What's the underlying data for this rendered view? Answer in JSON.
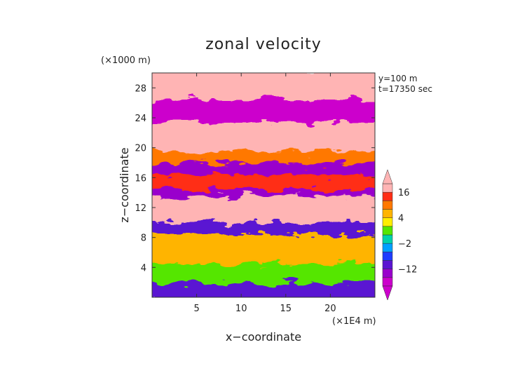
{
  "chart_data": {
    "type": "heatmap",
    "title": "zonal velocity",
    "xlabel": "x−coordinate",
    "ylabel": "z−coordinate",
    "x_unit_label": "(×1E4 m)",
    "y_unit_label": "(×1000 m)",
    "annotations": [
      "y=100 m",
      "t=17350 sec"
    ],
    "xlim": [
      0,
      25
    ],
    "ylim": [
      0,
      30
    ],
    "xticks": [
      5,
      10,
      15,
      20
    ],
    "yticks": [
      4,
      8,
      12,
      16,
      20,
      24,
      28
    ],
    "colorbar": {
      "tick_labels": [
        "16",
        "4",
        "−2",
        "−12"
      ],
      "tick_values": [
        16,
        4,
        -2,
        -12
      ],
      "levels": [
        -20,
        -16,
        -12,
        -8,
        -4,
        -2,
        0,
        2,
        4,
        8,
        12,
        16,
        20
      ],
      "colors": [
        "#cc00cc",
        "#9900cc",
        "#5a14d2",
        "#1e3cff",
        "#00a0ff",
        "#00d2aa",
        "#55e600",
        "#ffee00",
        "#ffb400",
        "#ff7800",
        "#ff2d14",
        "#ffb4b4"
      ],
      "extend": "both"
    },
    "bands": [
      {
        "z": [
          0,
          2.5
        ],
        "value": -10
      },
      {
        "z": [
          2.5,
          5
        ],
        "value": 0
      },
      {
        "z": [
          5,
          9
        ],
        "value": 6
      },
      {
        "z": [
          9,
          10.5
        ],
        "value": -12
      },
      {
        "z": [
          10.5,
          14
        ],
        "value": 18
      },
      {
        "z": [
          14,
          15
        ],
        "value": -14
      },
      {
        "z": [
          15,
          17
        ],
        "value": 14
      },
      {
        "z": [
          17,
          18.5
        ],
        "value": -16
      },
      {
        "z": [
          18.5,
          20
        ],
        "value": 10
      },
      {
        "z": [
          20,
          24
        ],
        "value": 18
      },
      {
        "z": [
          24,
          27
        ],
        "value": -18
      },
      {
        "z": [
          27,
          30
        ],
        "value": 18
      }
    ],
    "grid": false
  }
}
